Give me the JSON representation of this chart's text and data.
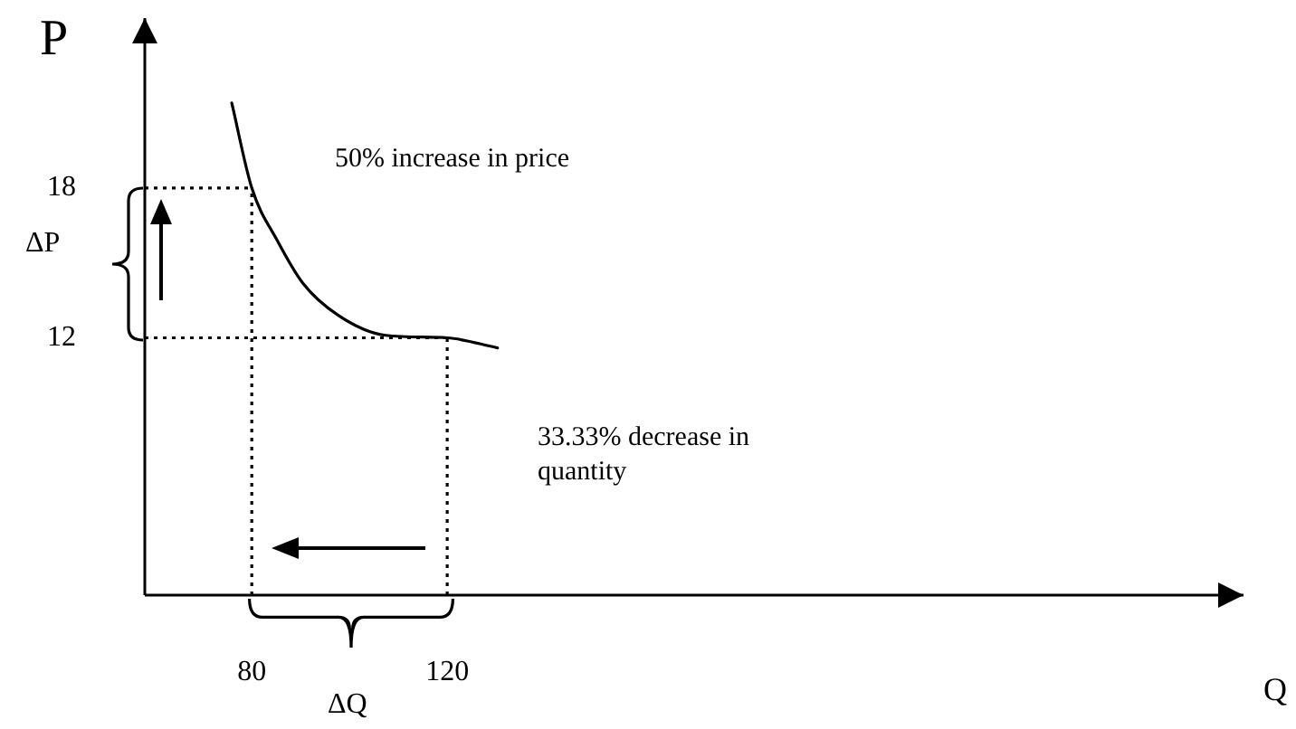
{
  "chart_data": {
    "type": "line",
    "xlabel": "Q",
    "ylabel": "P",
    "x": [
      75.9,
      80,
      85.2,
      90.4,
      97.7,
      107.4,
      120,
      130.3
    ],
    "series": [
      {
        "color": "#000000",
        "values": [
          21.4,
          18,
          15.9,
          14.2,
          12.9,
          12.1,
          12,
          11.6
        ]
      }
    ],
    "xlim": [
      58.1,
      283
    ],
    "ylim": [
      1.7,
      24.8
    ],
    "xticks": [
      80,
      120
    ],
    "yticks": [
      12,
      18
    ],
    "ref_lines": [
      {
        "axis": "y",
        "value": 18,
        "line_style": "dotted"
      },
      {
        "axis": "y",
        "value": 12,
        "line_style": "dotted"
      },
      {
        "axis": "x",
        "value": 80,
        "line_style": "dotted"
      },
      {
        "axis": "x",
        "value": 120,
        "line_style": "dotted"
      }
    ],
    "annotations": [
      "50% increase in price",
      "33.33% decrease in quantity",
      "ΔP",
      "ΔQ"
    ],
    "grid": false,
    "legend": false,
    "marker": "none",
    "line_style": "solid"
  }
}
